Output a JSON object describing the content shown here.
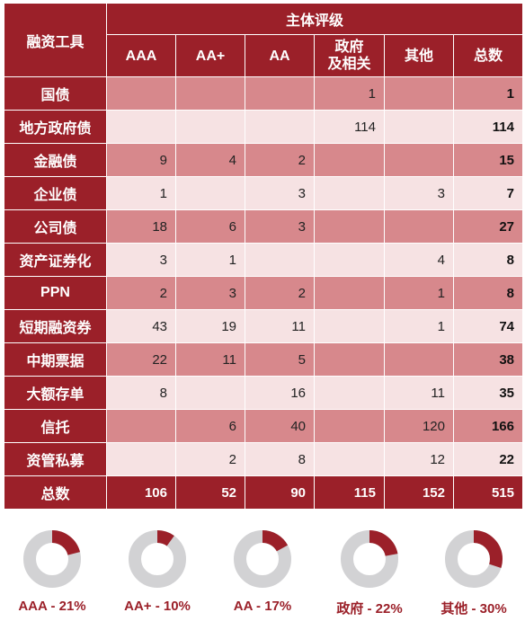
{
  "chart_data": {
    "type": "table",
    "corner_header": "融资工具",
    "group_header": "主体评级",
    "columns": [
      "AAA",
      "AA+",
      "AA",
      "政府\n及相关",
      "其他",
      "总数"
    ],
    "rows": [
      {
        "label": "国债",
        "values": [
          "",
          "",
          "",
          "1",
          "",
          "1"
        ]
      },
      {
        "label": "地方政府债",
        "values": [
          "",
          "",
          "",
          "114",
          "",
          "114"
        ]
      },
      {
        "label": "金融债",
        "values": [
          "9",
          "4",
          "2",
          "",
          "",
          "15"
        ]
      },
      {
        "label": "企业债",
        "values": [
          "1",
          "",
          "3",
          "",
          "3",
          "7"
        ]
      },
      {
        "label": "公司债",
        "values": [
          "18",
          "6",
          "3",
          "",
          "",
          "27"
        ]
      },
      {
        "label": "资产证券化",
        "values": [
          "3",
          "1",
          "",
          "",
          "4",
          "8"
        ]
      },
      {
        "label": "PPN",
        "values": [
          "2",
          "3",
          "2",
          "",
          "1",
          "8"
        ]
      },
      {
        "label": "短期融资券",
        "values": [
          "43",
          "19",
          "11",
          "",
          "1",
          "74"
        ]
      },
      {
        "label": "中期票据",
        "values": [
          "22",
          "11",
          "5",
          "",
          "",
          "38"
        ]
      },
      {
        "label": "大额存单",
        "values": [
          "8",
          "",
          "16",
          "",
          "11",
          "35"
        ]
      },
      {
        "label": "信托",
        "values": [
          "",
          "6",
          "40",
          "",
          "120",
          "166"
        ]
      },
      {
        "label": "资管私募",
        "values": [
          "",
          "2",
          "8",
          "",
          "12",
          "22"
        ]
      }
    ],
    "total_row": {
      "label": "总数",
      "values": [
        "106",
        "52",
        "90",
        "115",
        "152",
        "515"
      ]
    },
    "donuts": [
      {
        "label": "AAA - 21%",
        "value": 21
      },
      {
        "label": "AA+ - 10%",
        "value": 10
      },
      {
        "label": "AA - 17%",
        "value": 17
      },
      {
        "label": "政府 - 22%",
        "value": 22
      },
      {
        "label": "其他 - 30%",
        "value": 30
      }
    ]
  },
  "colors": {
    "header": "#9b2029",
    "row_dark": "#d7888c",
    "row_light": "#f6e2e3",
    "donut_fill": "#9b2029",
    "donut_track": "#d2d2d4"
  }
}
